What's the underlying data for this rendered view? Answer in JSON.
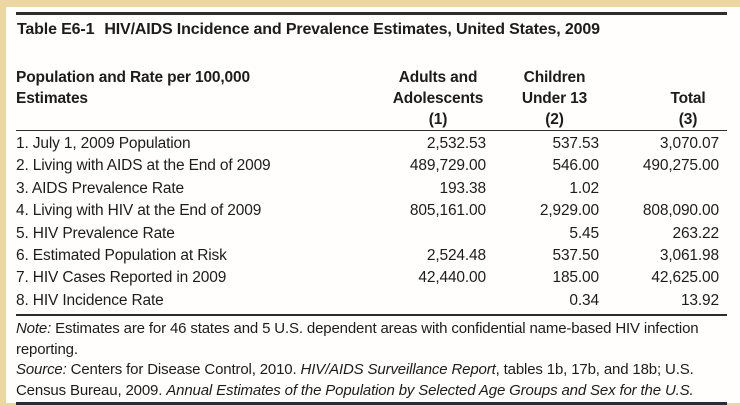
{
  "colors": {
    "frame": "#ecd7a3",
    "rule": "#2d2d2d",
    "text": "#1c1c1c"
  },
  "doc": {
    "table_label": "Table E6-1",
    "table_title": "HIV/AIDS Incidence and Prevalence Estimates, United States, 2009",
    "stub_header_line1": "Population and Rate per 100,000",
    "stub_header_line2": "Estimates",
    "columns": [
      {
        "line1": "Adults and",
        "line2": "Adolescents",
        "line3": "(1)"
      },
      {
        "line1": "Children",
        "line2": "Under 13",
        "line3": "(2)"
      },
      {
        "line1": "",
        "line2": "Total",
        "line3": "(3)"
      }
    ],
    "rows": [
      {
        "label": "1. July 1, 2009 Population",
        "adults": "2,532.53",
        "children": "537.53",
        "total": "3,070.07"
      },
      {
        "label": "2. Living with AIDS at the End of 2009",
        "adults": "489,729.00",
        "children": "546.00",
        "total": "490,275.00"
      },
      {
        "label": "3. AIDS Prevalence Rate",
        "adults": "193.38",
        "children": "1.02",
        "total": ""
      },
      {
        "label": "4. Living with HIV at the End of 2009",
        "adults": "805,161.00",
        "children": "2,929.00",
        "total": "808,090.00"
      },
      {
        "label": "5. HIV Prevalence Rate",
        "adults": "",
        "children": "5.45",
        "total": "263.22"
      },
      {
        "label": "6. Estimated Population at Risk",
        "adults": "2,524.48",
        "children": "537.50",
        "total": "3,061.98"
      },
      {
        "label": "7. HIV Cases Reported in 2009",
        "adults": "42,440.00",
        "children": "185.00",
        "total": "42,625.00"
      },
      {
        "label": "8. HIV Incidence Rate",
        "adults": "",
        "children": "0.34",
        "total": "13.92"
      }
    ],
    "note": {
      "prefix": "Note:",
      "text": " Estimates are for 46 states and 5 U.S. dependent areas with confidential name-based HIV infection reporting."
    },
    "source": {
      "prefix": "Source:",
      "part1": " Centers for Disease Control, 2010. ",
      "italic1": "HIV/AIDS Surveillance Report",
      "part2": ", tables 1b, 17b, and 18b; U.S. Census Bureau, 2009. ",
      "italic2": "Annual Estimates of the Population by Selected Age Groups and Sex for the U.S."
    }
  }
}
